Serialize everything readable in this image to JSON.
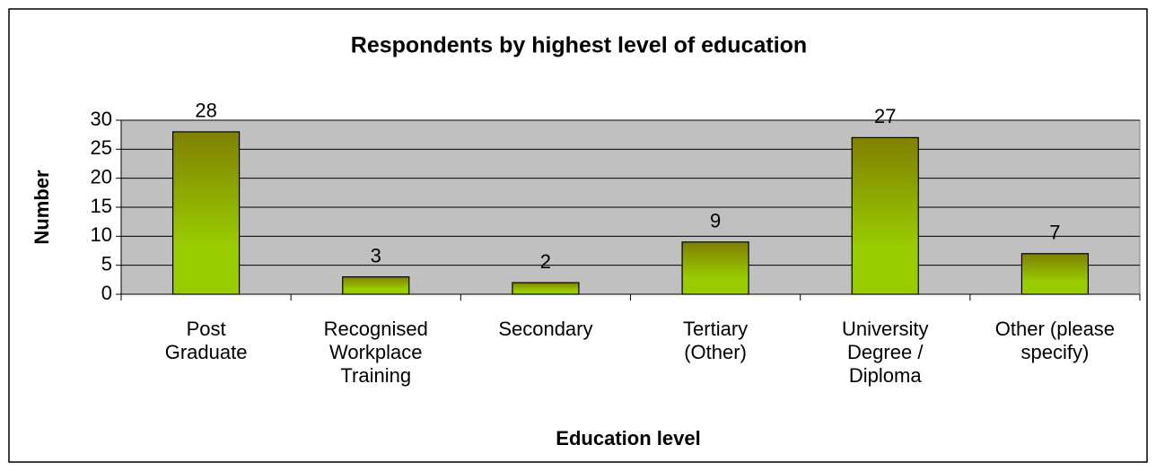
{
  "chart_data": {
    "type": "bar",
    "title": "Respondents by highest level of education",
    "x_label": "Education level",
    "y_label": "Number",
    "categories": [
      "Post Graduate",
      "Recognised Workplace Training",
      "Secondary",
      "Tertiary (Other)",
      "University Degree / Diploma",
      "Other (please specify)"
    ],
    "values": [
      28,
      3,
      2,
      9,
      27,
      7
    ],
    "color": "#99cc00",
    "color_top": "#808000",
    "ylim": [
      0,
      30
    ],
    "yticks": [
      0,
      5,
      10,
      15,
      20,
      25,
      30
    ],
    "grid": true
  }
}
